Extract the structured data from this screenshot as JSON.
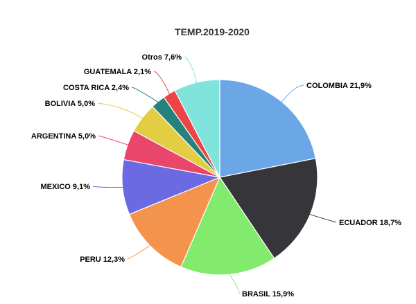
{
  "chart_data": {
    "type": "pie",
    "title": "TEMP.2019-2020",
    "slices": [
      {
        "label": "COLOMBIA 21,9%",
        "value": 21.9,
        "color": "#6ba7e7"
      },
      {
        "label": "ECUADOR 18,7%",
        "value": 18.7,
        "color": "#35353a"
      },
      {
        "label": "BRASIL 15,9%",
        "value": 15.9,
        "color": "#82ea6c"
      },
      {
        "label": "PERU 12,3%",
        "value": 12.3,
        "color": "#f3934c"
      },
      {
        "label": "MEXICO 9,1%",
        "value": 9.1,
        "color": "#6c6ae3"
      },
      {
        "label": "ARGENTINA 5,0%",
        "value": 5.0,
        "color": "#e9466c"
      },
      {
        "label": "BOLIVIA 5,0%",
        "value": 5.0,
        "color": "#e3cd43"
      },
      {
        "label": "COSTA RICA 2,4%",
        "value": 2.4,
        "color": "#28827c"
      },
      {
        "label": "GUATEMALA 2,1%",
        "value": 2.1,
        "color": "#ed4545"
      },
      {
        "label": "Otros 7,6%",
        "value": 7.6,
        "color": "#80e3dc"
      }
    ]
  }
}
